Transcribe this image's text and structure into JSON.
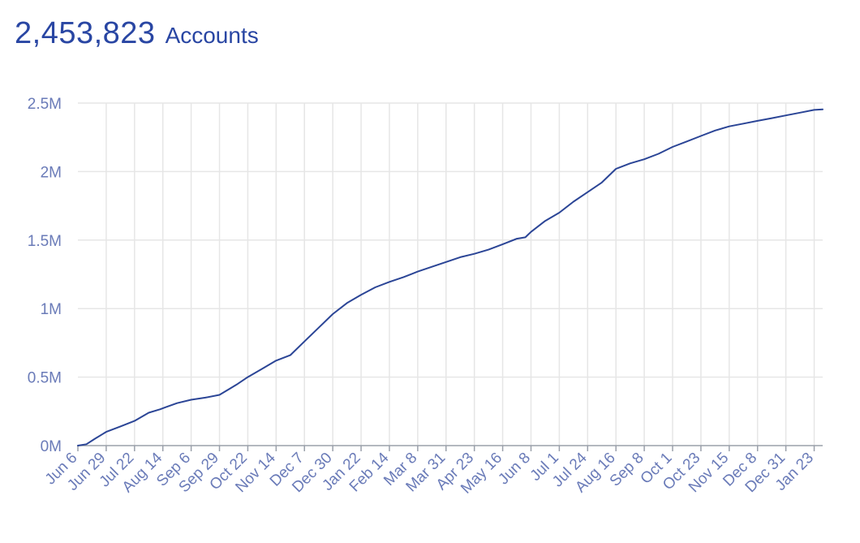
{
  "header": {
    "count": "2,453,823",
    "unit": "Accounts"
  },
  "colors": {
    "accent": "#2946a3",
    "line": "#2b4596",
    "tick_text": "#6a7bb8",
    "grid": "#e6e6e6",
    "axis": "#9aa0aa"
  },
  "chart_data": {
    "type": "line",
    "title": "2,453,823 Accounts",
    "xlabel": "",
    "ylabel": "",
    "ylim": [
      0,
      2500000
    ],
    "yticks": [
      0,
      500000,
      1000000,
      1500000,
      2000000,
      2500000
    ],
    "ytick_labels": [
      "0M",
      "0.5M",
      "1M",
      "1.5M",
      "2M",
      "2.5M"
    ],
    "xtick_labels": [
      "Jun 6",
      "Jun 29",
      "Jul 22",
      "Aug 14",
      "Sep 6",
      "Sep 29",
      "Oct 22",
      "Nov 14",
      "Dec 7",
      "Dec 30",
      "Jan 22",
      "Feb 14",
      "Mar 8",
      "Mar 31",
      "Apr 23",
      "May 16",
      "Jun 8",
      "Jul 1",
      "Jul 24",
      "Aug 16",
      "Sep 8",
      "Oct 1",
      "Oct 23",
      "Nov 15",
      "Dec 8",
      "Dec 31",
      "Jan 23"
    ],
    "grid": true,
    "legend": "none",
    "series": [
      {
        "x": [
          0,
          0.3,
          0.6,
          1,
          1.5,
          2,
          2.5,
          2.9,
          3.1,
          3.5,
          4,
          4.5,
          5,
          5.4,
          5.6,
          6,
          6.5,
          7,
          7.5,
          8,
          8.5,
          9,
          9.5,
          10,
          10.5,
          11,
          11.5,
          12,
          12.5,
          13,
          13.5,
          14,
          14.5,
          15,
          15.5,
          15.8,
          15.9,
          16,
          16.5,
          17,
          17.5,
          18,
          18.5,
          19,
          19.5,
          20,
          20.5,
          21,
          21.5,
          22,
          22.5,
          23,
          23.5,
          24,
          24.5,
          25,
          25.5,
          26,
          26.3
        ],
        "y": [
          0,
          10000,
          50000,
          100000,
          140000,
          180000,
          240000,
          265000,
          280000,
          310000,
          335000,
          350000,
          370000,
          420000,
          445000,
          500000,
          560000,
          620000,
          660000,
          760000,
          860000,
          960000,
          1040000,
          1100000,
          1155000,
          1195000,
          1230000,
          1270000,
          1305000,
          1340000,
          1375000,
          1400000,
          1430000,
          1470000,
          1510000,
          1520000,
          1540000,
          1560000,
          1640000,
          1700000,
          1780000,
          1850000,
          1920000,
          2020000,
          2060000,
          2090000,
          2130000,
          2180000,
          2220000,
          2260000,
          2300000,
          2330000,
          2350000,
          2370000,
          2390000,
          2410000,
          2430000,
          2450000,
          2453823
        ]
      }
    ]
  }
}
